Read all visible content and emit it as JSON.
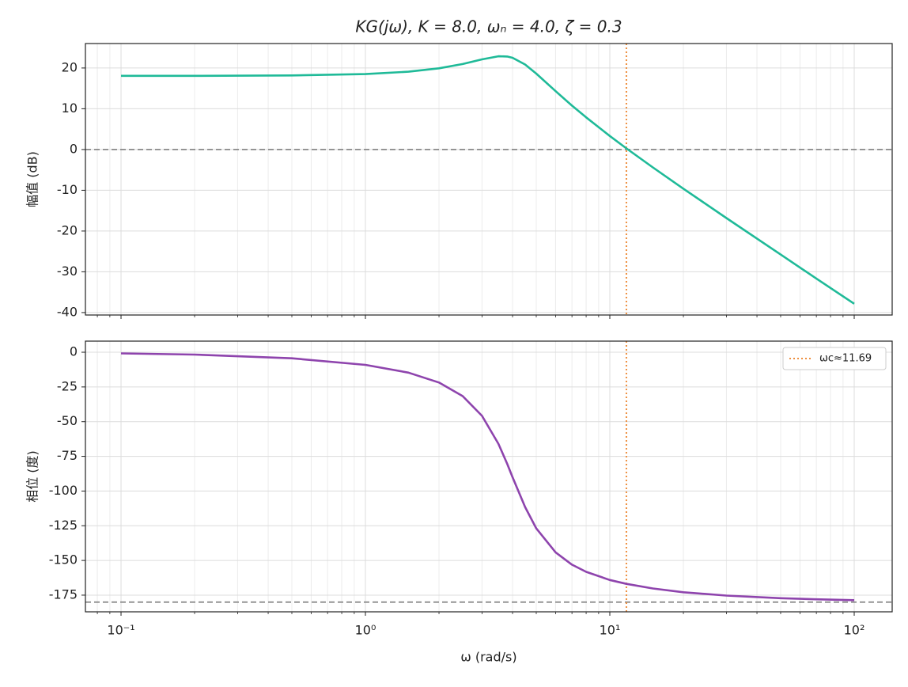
{
  "chart_data": [
    {
      "type": "line",
      "title": "KG(jω), K = 8.0, ωₙ = 4.0, ζ = 0.3",
      "ylabel": "幅值 (dB)",
      "xscale": "log",
      "grid": true,
      "x": [
        0.1,
        0.2,
        0.5,
        1,
        1.5,
        2,
        2.5,
        3,
        3.5,
        3.8,
        4,
        4.5,
        5,
        6,
        7,
        8,
        10,
        11.69,
        15,
        20,
        30,
        50,
        70,
        100
      ],
      "series": [
        {
          "color": "#1fba98",
          "values": [
            18.07,
            18.08,
            18.17,
            18.51,
            19.09,
            19.92,
            20.97,
            22.11,
            22.87,
            22.82,
            22.5,
            20.85,
            18.62,
            14.31,
            10.77,
            7.88,
            3.32,
            0.28,
            -4.39,
            -9.61,
            -16.81,
            -25.77,
            -31.64,
            -37.85
          ]
        }
      ],
      "xlim": [
        0.0715,
        143
      ],
      "xticks": [
        0.1,
        1,
        10,
        100
      ],
      "x_minor_ticks": [
        0.08,
        0.09,
        0.2,
        0.3,
        0.4,
        0.5,
        0.6,
        0.7,
        0.8,
        0.9,
        2,
        3,
        4,
        5,
        6,
        7,
        8,
        9,
        20,
        30,
        40,
        50,
        60,
        70,
        80,
        90
      ],
      "ylim": [
        -40.6,
        26.0
      ],
      "yticks": [
        20,
        10,
        0,
        -10,
        -20,
        -30,
        -40
      ],
      "hlines": [
        {
          "value": 0,
          "color": "#888888"
        }
      ],
      "vline": {
        "value": 11.69,
        "color": "#ee9040"
      }
    },
    {
      "type": "line",
      "ylabel": "相位 (度)",
      "xlabel": "ω (rad/s)",
      "xscale": "log",
      "grid": true,
      "x": [
        0.1,
        0.2,
        0.5,
        1,
        1.5,
        2,
        2.5,
        3,
        3.5,
        3.8,
        4,
        4.5,
        5,
        6,
        7,
        8,
        10,
        11.69,
        15,
        20,
        30,
        50,
        70,
        100
      ],
      "series": [
        {
          "color": "#8e44ad",
          "values": [
            -0.86,
            -1.72,
            -4.36,
            -9.09,
            -14.67,
            -21.8,
            -31.6,
            -45.8,
            -65.9,
            -80.3,
            -90,
            -111.5,
            -126.9,
            -144.2,
            -153.0,
            -158.2,
            -164.1,
            -166.9,
            -170.2,
            -172.9,
            -175.3,
            -177.2,
            -178.0,
            -178.6
          ]
        }
      ],
      "xlim": [
        0.0715,
        143
      ],
      "xticks": [
        {
          "value": 0.1,
          "label": "10⁻¹"
        },
        {
          "value": 1,
          "label": "10⁰"
        },
        {
          "value": 10,
          "label": "10¹"
        },
        {
          "value": 100,
          "label": "10²"
        }
      ],
      "x_minor_ticks": [
        0.08,
        0.09,
        0.2,
        0.3,
        0.4,
        0.5,
        0.6,
        0.7,
        0.8,
        0.9,
        2,
        3,
        4,
        5,
        6,
        7,
        8,
        9,
        20,
        30,
        40,
        50,
        60,
        70,
        80,
        90
      ],
      "ylim": [
        -187,
        8
      ],
      "yticks": [
        0,
        -25,
        -50,
        -75,
        -100,
        -125,
        -150,
        -175
      ],
      "hlines": [
        {
          "value": -180,
          "color": "#888888"
        }
      ],
      "vline": {
        "value": 11.69,
        "color": "#ee9040",
        "name": "ωc≈11.69"
      },
      "legend": "upper right"
    }
  ]
}
